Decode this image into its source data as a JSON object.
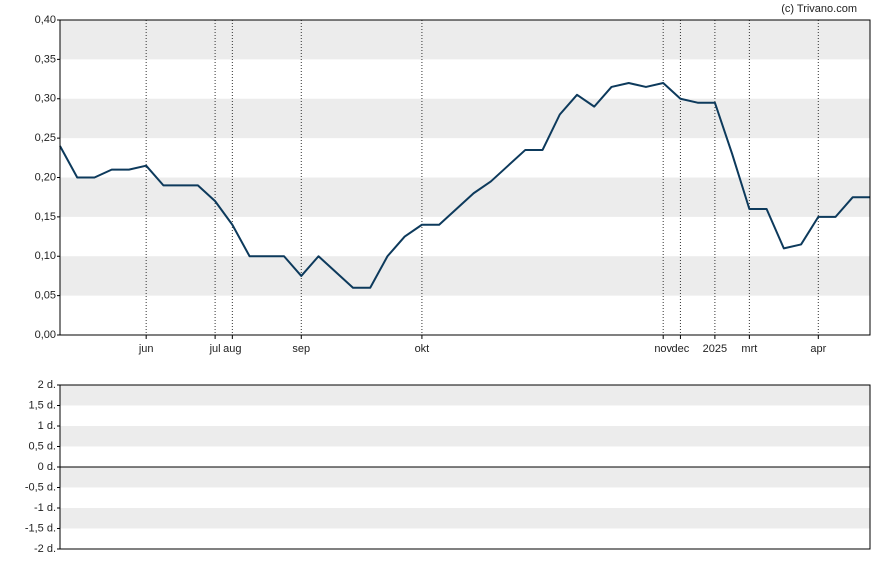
{
  "credit": "(c) Trivano.com",
  "chart_data": [
    {
      "type": "line",
      "categories": [
        null,
        null,
        null,
        null,
        null,
        "jun",
        null,
        null,
        null,
        "jul",
        "aug",
        null,
        null,
        null,
        "sep",
        null,
        null,
        null,
        null,
        null,
        null,
        "okt",
        null,
        null,
        null,
        null,
        null,
        null,
        null,
        null,
        null,
        null,
        null,
        null,
        null,
        "nov",
        "dec",
        null,
        "2025",
        null,
        "mrt",
        null,
        null,
        null,
        "apr",
        null,
        null,
        null
      ],
      "series": [
        {
          "color": "#0d3a5c",
          "values": [
            0.24,
            0.2,
            0.2,
            0.21,
            0.21,
            0.215,
            0.19,
            0.19,
            0.19,
            0.17,
            0.14,
            0.1,
            0.1,
            0.1,
            0.075,
            0.1,
            0.08,
            0.06,
            0.06,
            0.1,
            0.125,
            0.14,
            0.14,
            0.16,
            0.18,
            0.195,
            0.215,
            0.235,
            0.235,
            0.28,
            0.305,
            0.29,
            0.315,
            0.32,
            0.315,
            0.32,
            0.3,
            0.295,
            0.295,
            0.23,
            0.16,
            0.16,
            0.11,
            0.115,
            0.15,
            0.15,
            0.175,
            0.175
          ]
        }
      ],
      "ylim": [
        0,
        0.4
      ],
      "yticks": [
        {
          "value": 0,
          "label": "0,00"
        },
        {
          "value": 0.05,
          "label": "0,05"
        },
        {
          "value": 0.1,
          "label": "0,10"
        },
        {
          "value": 0.15,
          "label": "0,15"
        },
        {
          "value": 0.2,
          "label": "0,20"
        },
        {
          "value": 0.25,
          "label": "0,25"
        },
        {
          "value": 0.3,
          "label": "0,30"
        },
        {
          "value": 0.35,
          "label": "0,35"
        },
        {
          "value": 0.4,
          "label": "0,40"
        }
      ],
      "grid": true
    },
    {
      "type": "bar",
      "ylim": [
        -2,
        2
      ],
      "yticks": [
        {
          "value": -2,
          "label": "-2 d."
        },
        {
          "value": -1.5,
          "label": "-1,5 d."
        },
        {
          "value": -1,
          "label": "-1 d."
        },
        {
          "value": -0.5,
          "label": "-0,5 d."
        },
        {
          "value": 0,
          "label": "0 d."
        },
        {
          "value": 0.5,
          "label": "0,5 d."
        },
        {
          "value": 1,
          "label": "1 d."
        },
        {
          "value": 1.5,
          "label": "1,5 d."
        },
        {
          "value": 2,
          "label": "2 d."
        }
      ],
      "grid": true
    }
  ]
}
